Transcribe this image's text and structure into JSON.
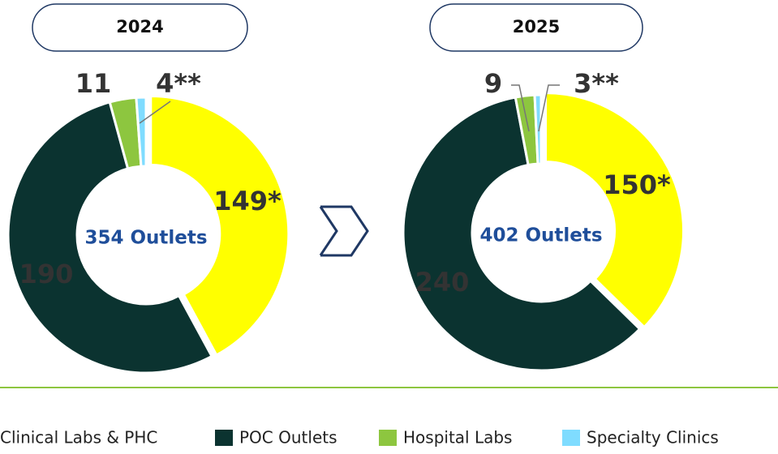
{
  "chart_data": [
    {
      "type": "pie",
      "title": "2024",
      "center_label": "354 Outlets",
      "categories": [
        "Clinical Labs & PHC",
        "POC Outlets",
        "Hospital Labs",
        "Specialty Clinics"
      ],
      "values": [
        149,
        190,
        11,
        4
      ],
      "value_labels": [
        "149*",
        "190",
        "11",
        "4**"
      ],
      "colors": [
        "#ffff00",
        "#0b3330",
        "#8dc63f",
        "#7fdcff"
      ]
    },
    {
      "type": "pie",
      "title": "2025",
      "center_label": "402 Outlets",
      "categories": [
        "Clinical Labs & PHC",
        "POC Outlets",
        "Hospital Labs",
        "Specialty Clinics"
      ],
      "values": [
        150,
        240,
        9,
        3
      ],
      "value_labels": [
        "150*",
        "240",
        "9",
        "3**"
      ],
      "colors": [
        "#ffff00",
        "#0b3330",
        "#8dc63f",
        "#7fdcff"
      ]
    }
  ]
}
